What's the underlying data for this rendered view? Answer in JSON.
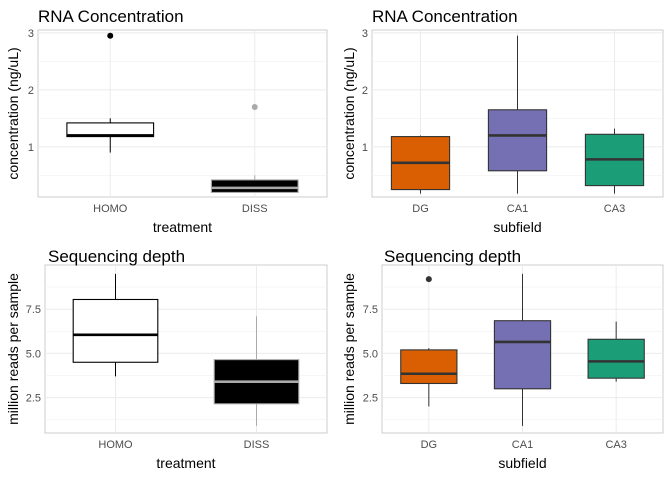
{
  "chart_data": [
    {
      "type": "boxplot",
      "title": "RNA Concentration",
      "xlabel": "treatment",
      "ylabel": "concentration (ng/uL)",
      "categories": [
        "HOMO",
        "DISS"
      ],
      "ylim": [
        0,
        3
      ],
      "yticks": [
        "1",
        "2",
        "3"
      ],
      "ytick_values": [
        1,
        2,
        3
      ],
      "grid": "on",
      "boxes": [
        {
          "category": "HOMO",
          "whisker_low": 0.9,
          "q1": 1.18,
          "median": 1.2,
          "q3": 1.42,
          "whisker_high": 1.5,
          "outliers": [
            2.95
          ],
          "fill": "#ffffff",
          "line": "#000000",
          "outlier_color": "#000000"
        },
        {
          "category": "DISS",
          "whisker_low": 0.2,
          "q1": 0.2,
          "median": 0.28,
          "q3": 0.42,
          "whisker_high": 0.5,
          "outliers": [
            1.7
          ],
          "fill": "#000000",
          "line": "#aaaaaa",
          "outlier_color": "#aaaaaa"
        }
      ]
    },
    {
      "type": "boxplot",
      "title": "RNA Concentration",
      "xlabel": "subfield",
      "ylabel": "concentration (ng/uL)",
      "categories": [
        "DG",
        "CA1",
        "CA3"
      ],
      "ylim": [
        0,
        3
      ],
      "yticks": [
        "1",
        "2",
        "3"
      ],
      "ytick_values": [
        1,
        2,
        3
      ],
      "grid": "on",
      "boxes": [
        {
          "category": "DG",
          "whisker_low": 0.18,
          "q1": 0.25,
          "median": 0.72,
          "q3": 1.18,
          "whisker_high": 1.2,
          "outliers": [],
          "fill": "#d95f02",
          "line": "#333333",
          "outlier_color": "#333333"
        },
        {
          "category": "CA1",
          "whisker_low": 0.18,
          "q1": 0.58,
          "median": 1.2,
          "q3": 1.65,
          "whisker_high": 2.95,
          "outliers": [],
          "fill": "#7570b3",
          "line": "#333333",
          "outlier_color": "#333333"
        },
        {
          "category": "CA3",
          "whisker_low": 0.18,
          "q1": 0.32,
          "median": 0.78,
          "q3": 1.22,
          "whisker_high": 1.32,
          "outliers": [],
          "fill": "#1b9e77",
          "line": "#333333",
          "outlier_color": "#333333"
        }
      ]
    },
    {
      "type": "boxplot",
      "title": "Sequencing depth",
      "xlabel": "treatment",
      "ylabel": "million reads per sample",
      "categories": [
        "HOMO",
        "DISS"
      ],
      "ylim": [
        0,
        10
      ],
      "yticks": [
        "2.5",
        "5.0",
        "7.5"
      ],
      "ytick_values": [
        2.5,
        5.0,
        7.5
      ],
      "grid": "on",
      "boxes": [
        {
          "category": "HOMO",
          "whisker_low": 3.7,
          "q1": 4.5,
          "median": 6.05,
          "q3": 8.05,
          "whisker_high": 9.5,
          "outliers": [],
          "fill": "#ffffff",
          "line": "#000000",
          "outlier_color": "#000000"
        },
        {
          "category": "DISS",
          "whisker_low": 0.9,
          "q1": 2.15,
          "median": 3.4,
          "q3": 4.65,
          "whisker_high": 7.1,
          "outliers": [],
          "fill": "#000000",
          "line": "#aaaaaa",
          "outlier_color": "#aaaaaa"
        }
      ]
    },
    {
      "type": "boxplot",
      "title": "Sequencing depth",
      "xlabel": "subfield",
      "ylabel": "million reads per sample",
      "categories": [
        "DG",
        "CA1",
        "CA3"
      ],
      "ylim": [
        0,
        10
      ],
      "yticks": [
        "2.5",
        "5.0",
        "7.5"
      ],
      "ytick_values": [
        2.5,
        5.0,
        7.5
      ],
      "grid": "on",
      "boxes": [
        {
          "category": "DG",
          "whisker_low": 2.0,
          "q1": 3.3,
          "median": 3.85,
          "q3": 5.2,
          "whisker_high": 5.3,
          "outliers": [
            9.2
          ],
          "fill": "#d95f02",
          "line": "#333333",
          "outlier_color": "#333333"
        },
        {
          "category": "CA1",
          "whisker_low": 0.9,
          "q1": 3.0,
          "median": 5.65,
          "q3": 6.85,
          "whisker_high": 9.5,
          "outliers": [],
          "fill": "#7570b3",
          "line": "#333333",
          "outlier_color": "#333333"
        },
        {
          "category": "CA3",
          "whisker_low": 3.4,
          "q1": 3.6,
          "median": 4.55,
          "q3": 5.8,
          "whisker_high": 6.8,
          "outliers": [],
          "fill": "#1b9e77",
          "line": "#333333",
          "outlier_color": "#333333"
        }
      ]
    }
  ]
}
